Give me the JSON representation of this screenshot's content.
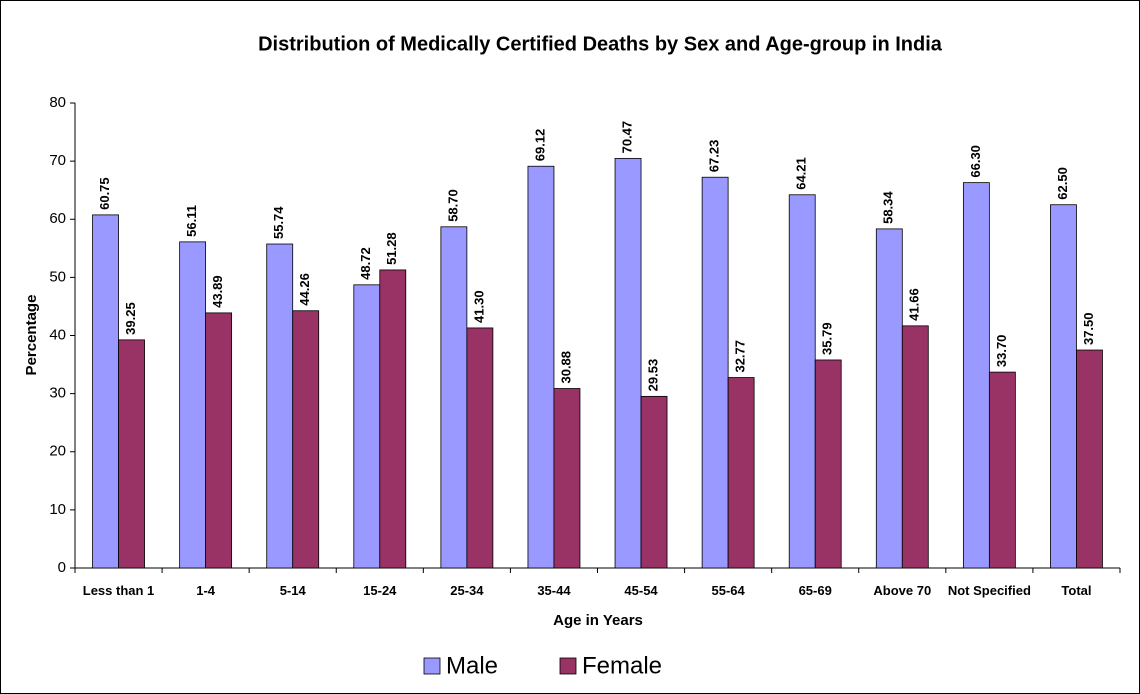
{
  "chart_data": {
    "type": "bar",
    "title": "Distribution of Medically Certified Deaths by Sex and Age-group in India",
    "x_label": "Age in Years",
    "y_label": "Percentage",
    "categories": [
      "Less than 1",
      "1-4",
      "5-14",
      "15-24",
      "25-34",
      "35-44",
      "45-54",
      "55-64",
      "65-69",
      "Above 70",
      "Not Specified",
      "Total"
    ],
    "series": [
      {
        "name": "Male",
        "color": "#9999ff",
        "values": [
          60.75,
          56.11,
          55.74,
          48.72,
          58.7,
          69.12,
          70.47,
          67.23,
          64.21,
          58.34,
          66.3,
          62.5
        ],
        "value_labels": [
          "60.75",
          "56.11",
          "55.74",
          "48.72",
          "58.70",
          "69.12",
          "70.47",
          "67.23",
          "64.21",
          "58.34",
          "66.30",
          "62.50"
        ]
      },
      {
        "name": "Female",
        "color": "#993366",
        "values": [
          39.25,
          43.89,
          44.26,
          51.28,
          41.3,
          30.88,
          29.53,
          32.77,
          35.79,
          41.66,
          33.7,
          37.5
        ],
        "value_labels": [
          "39.25",
          "43.89",
          "44.26",
          "51.28",
          "41.30",
          "30.88",
          "29.53",
          "32.77",
          "35.79",
          "41.66",
          "33.70",
          "37.50"
        ]
      }
    ],
    "ylim": [
      0,
      80
    ],
    "yticks": [
      0,
      10,
      20,
      30,
      40,
      50,
      60,
      70,
      80
    ],
    "legend": "bottom"
  }
}
